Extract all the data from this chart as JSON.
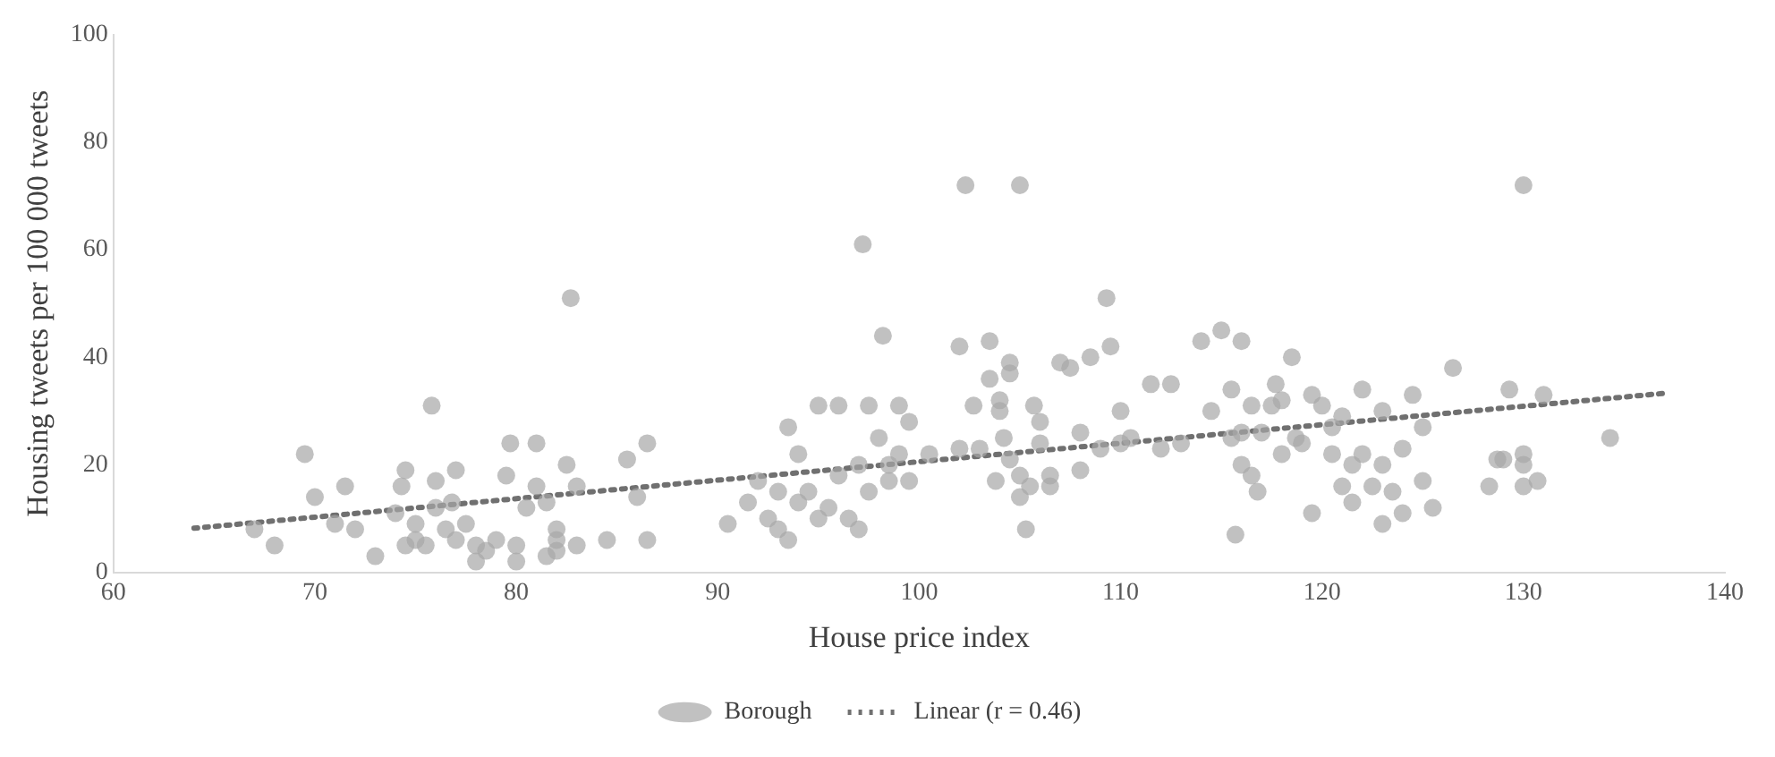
{
  "chart_data": {
    "type": "scatter",
    "xlabel": "House price index",
    "ylabel": "Housing tweets per 100 000 tweets",
    "xlim": [
      60,
      140
    ],
    "xticks": [
      60,
      70,
      80,
      90,
      100,
      110,
      120,
      130,
      140
    ],
    "ylim": [
      0,
      100
    ],
    "yticks": [
      0,
      20,
      40,
      60,
      80,
      100
    ],
    "grid": false,
    "legend": "bottom",
    "marker": "circle",
    "series": [
      {
        "name": "Borough",
        "color": "#a6a6a6",
        "x": [
          67,
          68,
          69.5,
          70,
          71,
          71.5,
          72,
          73,
          74,
          74.3,
          74.5,
          74.5,
          75,
          75,
          75.5,
          75.8,
          76,
          76,
          76.5,
          76.8,
          77,
          77,
          77.5,
          78,
          78,
          78.5,
          79,
          79.5,
          79.7,
          80,
          80,
          80.5,
          81,
          81,
          81.5,
          81.5,
          82,
          82,
          82,
          82.5,
          82.7,
          83,
          83,
          84.5,
          85.5,
          86,
          86.5,
          86.5,
          90.5,
          91.5,
          92,
          92.5,
          93,
          93,
          93.5,
          93.5,
          94,
          94,
          94.5,
          95,
          95,
          95.5,
          96,
          96,
          96.5,
          97,
          97,
          97.2,
          97.5,
          97.5,
          98,
          98.2,
          98.5,
          98.5,
          99,
          99,
          99.5,
          99.5,
          100.5,
          102,
          102,
          102.3,
          102.7,
          103,
          103.5,
          103.5,
          103.8,
          104,
          104,
          104.2,
          104.5,
          104.5,
          104.5,
          105,
          105,
          105,
          105.3,
          105.5,
          105.7,
          106,
          106,
          106.5,
          106.5,
          107,
          107.5,
          108,
          108,
          108.5,
          109,
          109.3,
          109.5,
          110,
          110,
          110.5,
          111.5,
          112,
          112.5,
          113,
          114,
          114.5,
          115,
          115.5,
          115.5,
          115.7,
          116,
          116,
          116,
          116.5,
          116.5,
          116.8,
          117,
          117.5,
          117.7,
          118,
          118,
          118.5,
          118.7,
          119,
          119.5,
          119.5,
          120,
          120.5,
          120.5,
          121,
          121,
          121.5,
          121.5,
          122,
          122,
          122.5,
          123,
          123,
          123,
          123.5,
          124,
          124,
          124.5,
          125,
          125,
          125.5,
          126.5,
          128.3,
          128.7,
          129,
          129.3,
          130,
          130,
          130,
          130,
          130.7,
          131,
          134.3
        ],
        "values": [
          8,
          5,
          22,
          14,
          9,
          16,
          8,
          3,
          11,
          16,
          19,
          5,
          9,
          6,
          5,
          31,
          17,
          12,
          8,
          13,
          19,
          6,
          9,
          5,
          2,
          4,
          6,
          18,
          24,
          5,
          2,
          12,
          16,
          24,
          13,
          3,
          8,
          4,
          6,
          20,
          51,
          5,
          16,
          6,
          21,
          14,
          24,
          6,
          9,
          13,
          17,
          10,
          8,
          15,
          6,
          27,
          22,
          13,
          15,
          31,
          10,
          12,
          18,
          31,
          10,
          8,
          20,
          61,
          31,
          15,
          25,
          44,
          17,
          20,
          31,
          22,
          28,
          17,
          22,
          42,
          23,
          72,
          31,
          23,
          43,
          36,
          17,
          32,
          30,
          25,
          37,
          21,
          39,
          72,
          14,
          18,
          8,
          16,
          31,
          28,
          24,
          18,
          16,
          39,
          38,
          26,
          19,
          40,
          23,
          51,
          42,
          30,
          24,
          25,
          35,
          23,
          35,
          24,
          43,
          30,
          45,
          25,
          34,
          7,
          43,
          20,
          26,
          18,
          31,
          15,
          26,
          31,
          35,
          22,
          32,
          40,
          25,
          24,
          11,
          33,
          31,
          27,
          22,
          16,
          29,
          13,
          20,
          34,
          22,
          16,
          20,
          9,
          30,
          15,
          23,
          11,
          33,
          17,
          27,
          12,
          38,
          16,
          21,
          21,
          34,
          72,
          16,
          20,
          22,
          17,
          33,
          25
        ]
      },
      {
        "name": "Linear (r = 0.46)",
        "type": "line",
        "line_style": "dotted",
        "marker": "none",
        "color": "#707070",
        "x": [
          64,
          137
        ],
        "values": [
          8.2,
          33.3
        ]
      }
    ]
  }
}
